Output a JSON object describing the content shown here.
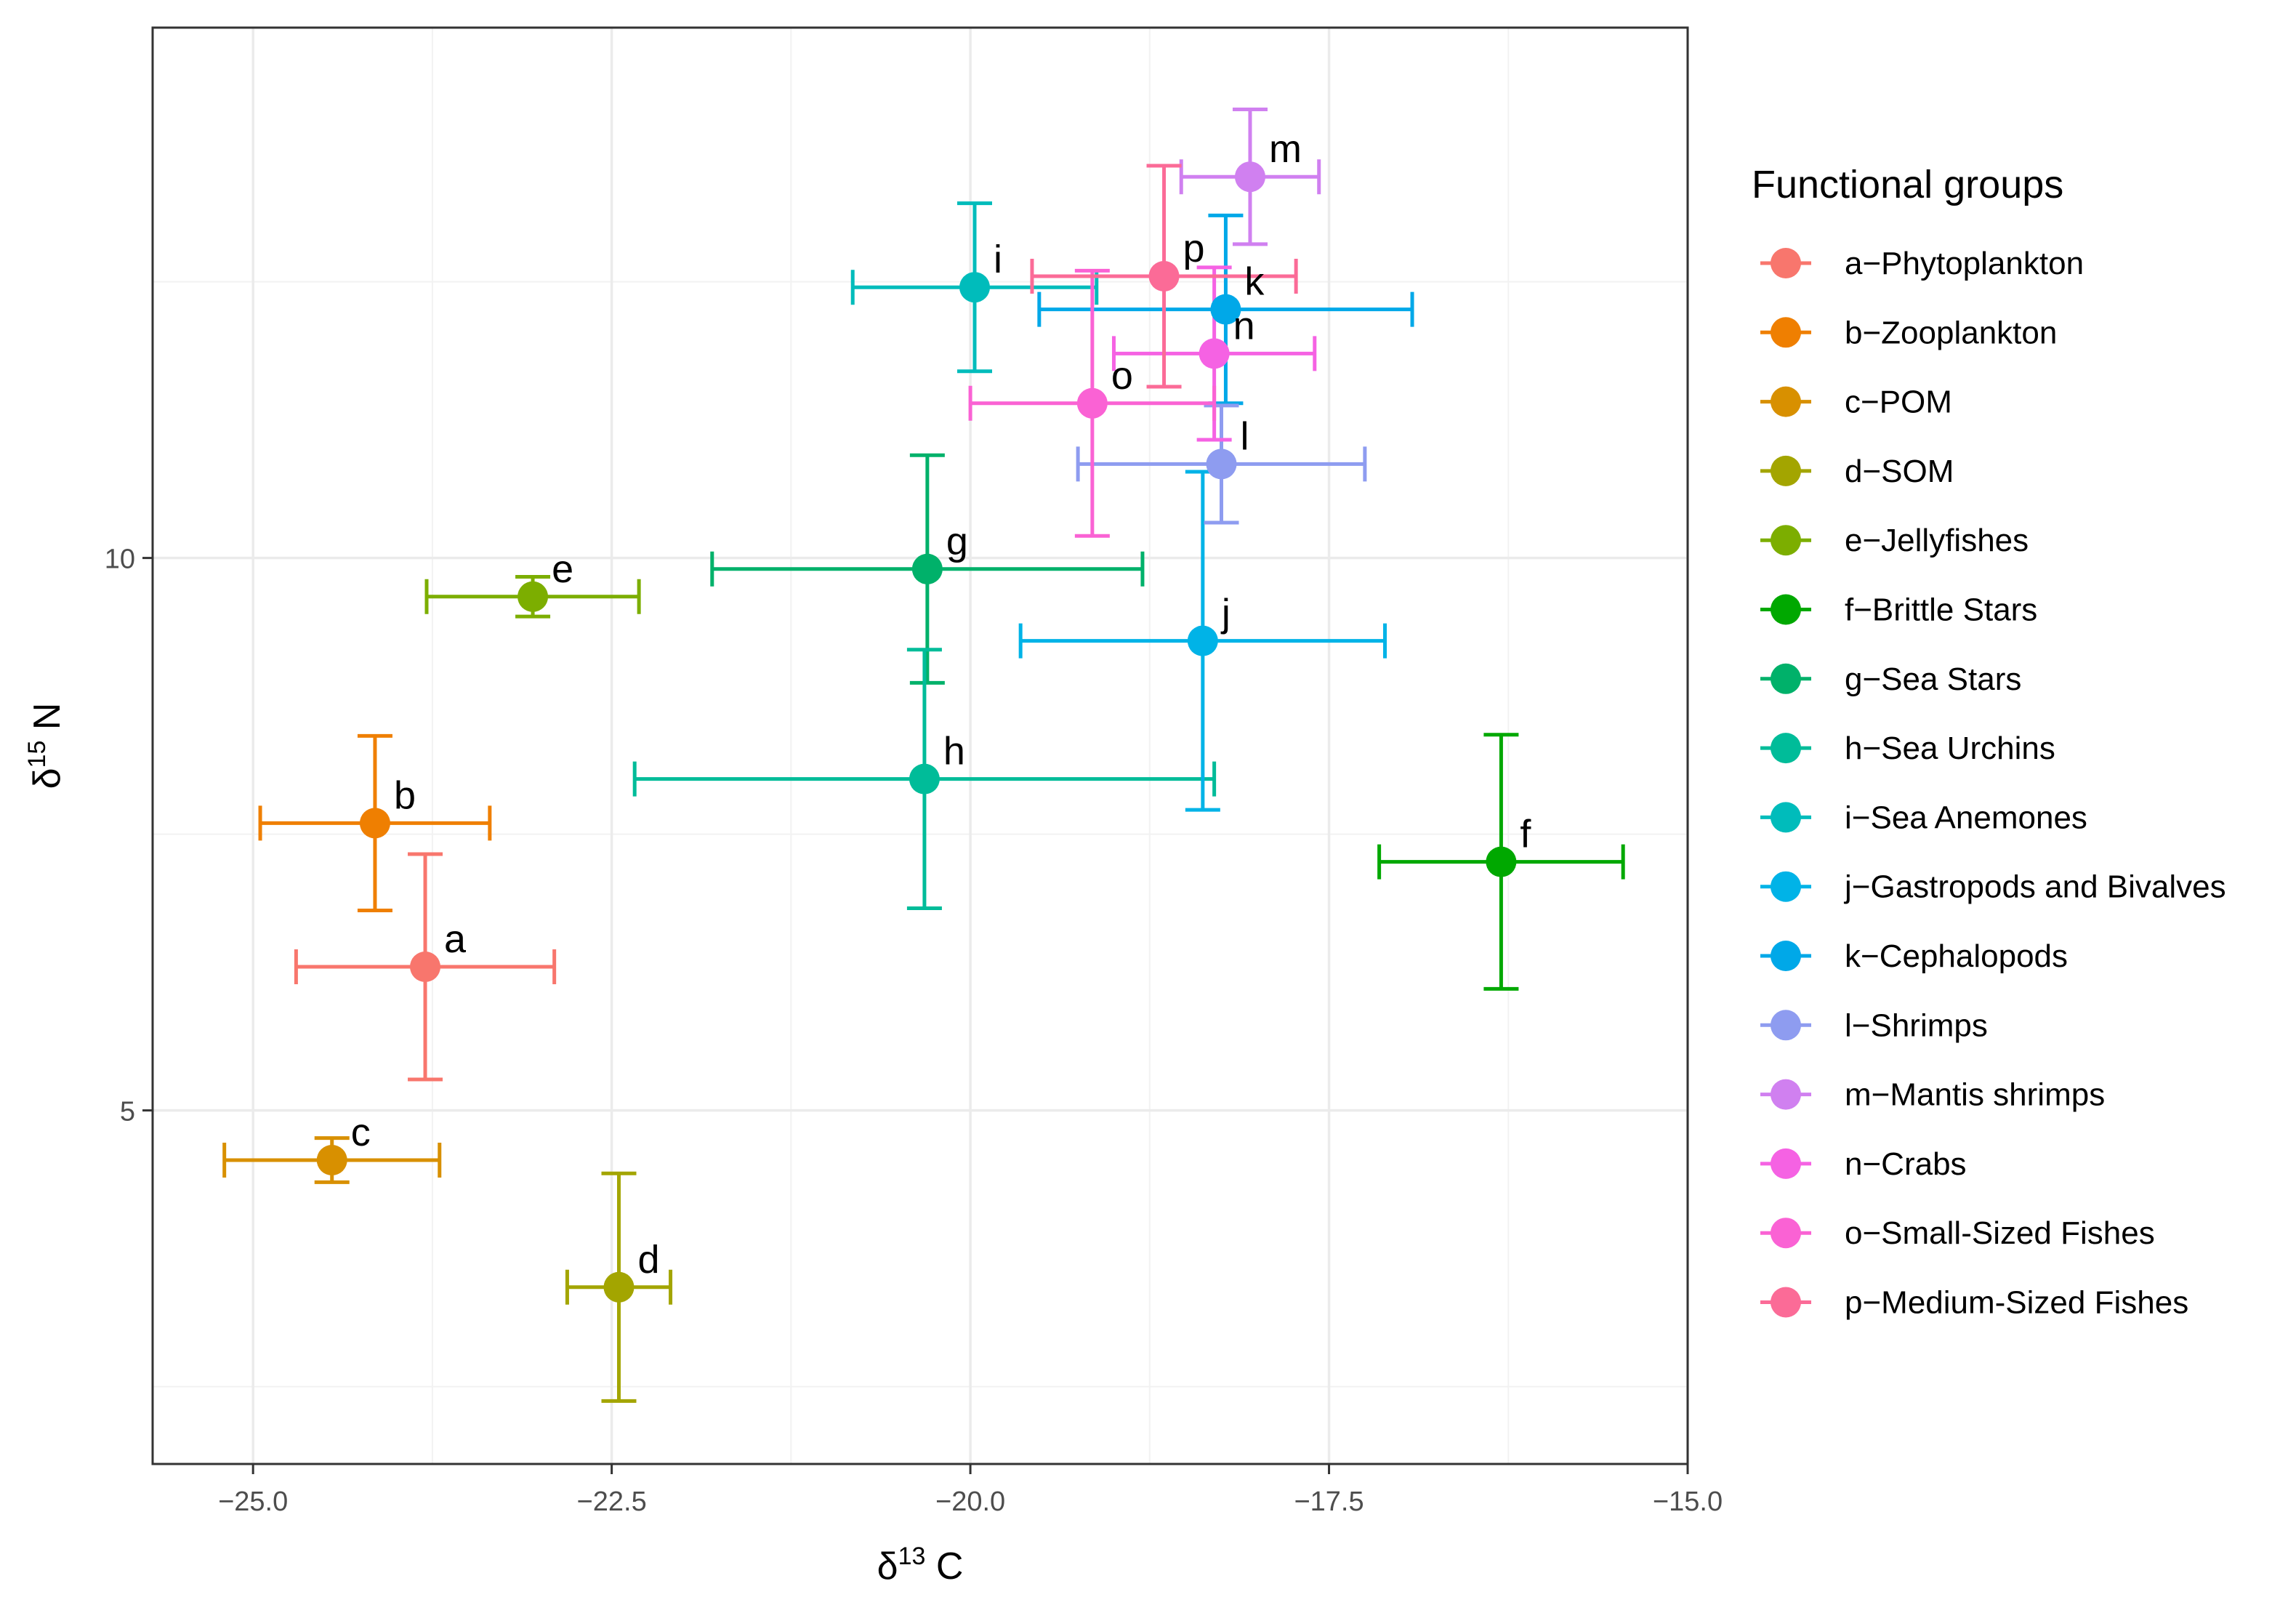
{
  "chart_data": {
    "type": "scatter",
    "title": "",
    "x_label": {
      "symbol": "δ",
      "superscript": "13",
      "element": "C"
    },
    "y_label": {
      "symbol": "δ",
      "superscript": "15",
      "element": "N"
    },
    "xlim": [
      -25.7,
      -15.0
    ],
    "ylim": [
      1.8,
      14.8
    ],
    "x_ticks": [
      -25.0,
      -22.5,
      -20.0,
      -17.5,
      -15.0
    ],
    "x_tick_labels": [
      "−25.0",
      "−22.5",
      "−20.0",
      "−17.5",
      "−15.0"
    ],
    "y_ticks": [
      5,
      10
    ],
    "y_tick_labels": [
      "5",
      "10"
    ],
    "grid": true,
    "legend_title": "Functional groups",
    "legend_position": "right",
    "series": [
      {
        "id": "a",
        "name": "a−Phytoplankton",
        "color": "#F8766D",
        "x": -23.8,
        "x_err": 0.9,
        "y": 6.3,
        "y_err": 1.02
      },
      {
        "id": "b",
        "name": "b−Zooplankton",
        "color": "#EF7F01",
        "x": -24.15,
        "x_err": 0.8,
        "y": 7.6,
        "y_err": 0.79
      },
      {
        "id": "c",
        "name": "c−POM",
        "color": "#D89000",
        "x": -24.45,
        "x_err": 0.75,
        "y": 4.55,
        "y_err": 0.2
      },
      {
        "id": "d",
        "name": "d−SOM",
        "color": "#A3A500",
        "x": -22.45,
        "x_err": 0.36,
        "y": 3.4,
        "y_err": 1.03
      },
      {
        "id": "e",
        "name": "e−Jellyfishes",
        "color": "#7CAE00",
        "x": -23.05,
        "x_err": 0.74,
        "y": 9.65,
        "y_err": 0.18
      },
      {
        "id": "f",
        "name": "f−Brittle Stars",
        "color": "#00A800",
        "x": -16.3,
        "x_err": 0.85,
        "y": 7.25,
        "y_err": 1.15
      },
      {
        "id": "g",
        "name": "g−Sea Stars",
        "color": "#00B16A",
        "x": -20.3,
        "x_err": 1.5,
        "y": 9.9,
        "y_err": 1.03
      },
      {
        "id": "h",
        "name": "h−Sea Urchins",
        "color": "#00BC99",
        "x": -20.32,
        "x_err": 2.02,
        "y": 8.0,
        "y_err": 1.17
      },
      {
        "id": "i",
        "name": "i−Sea Anemones",
        "color": "#00BCBB",
        "x": -19.97,
        "x_err": 0.85,
        "y": 12.45,
        "y_err": 0.76
      },
      {
        "id": "j",
        "name": "j−Gastropods and Bivalves",
        "color": "#00B3E7",
        "x": -18.38,
        "x_err": 1.27,
        "y": 9.25,
        "y_err": 1.53
      },
      {
        "id": "k",
        "name": "k−Cephalopods",
        "color": "#00A8E8",
        "x": -18.22,
        "x_err": 1.3,
        "y": 12.25,
        "y_err": 0.85
      },
      {
        "id": "l",
        "name": "l−Shrimps",
        "color": "#8E9CF0",
        "x": -18.25,
        "x_err": 1.0,
        "y": 10.85,
        "y_err": 0.53
      },
      {
        "id": "m",
        "name": "m−Mantis shrimps",
        "color": "#D080F0",
        "x": -18.05,
        "x_err": 0.48,
        "y": 13.45,
        "y_err": 0.61
      },
      {
        "id": "n",
        "name": "n−Crabs",
        "color": "#F562E3",
        "x": -18.3,
        "x_err": 0.7,
        "y": 11.85,
        "y_err": 0.78
      },
      {
        "id": "o",
        "name": "o−Small-Sized Fishes",
        "color": "#FA62D4",
        "x": -19.15,
        "x_err": 0.85,
        "y": 11.4,
        "y_err": 1.2
      },
      {
        "id": "p",
        "name": "p−Medium-Sized Fishes",
        "color": "#FB6B97",
        "x": -18.65,
        "x_err": 0.92,
        "y": 12.55,
        "y_err": 1.0
      }
    ]
  }
}
